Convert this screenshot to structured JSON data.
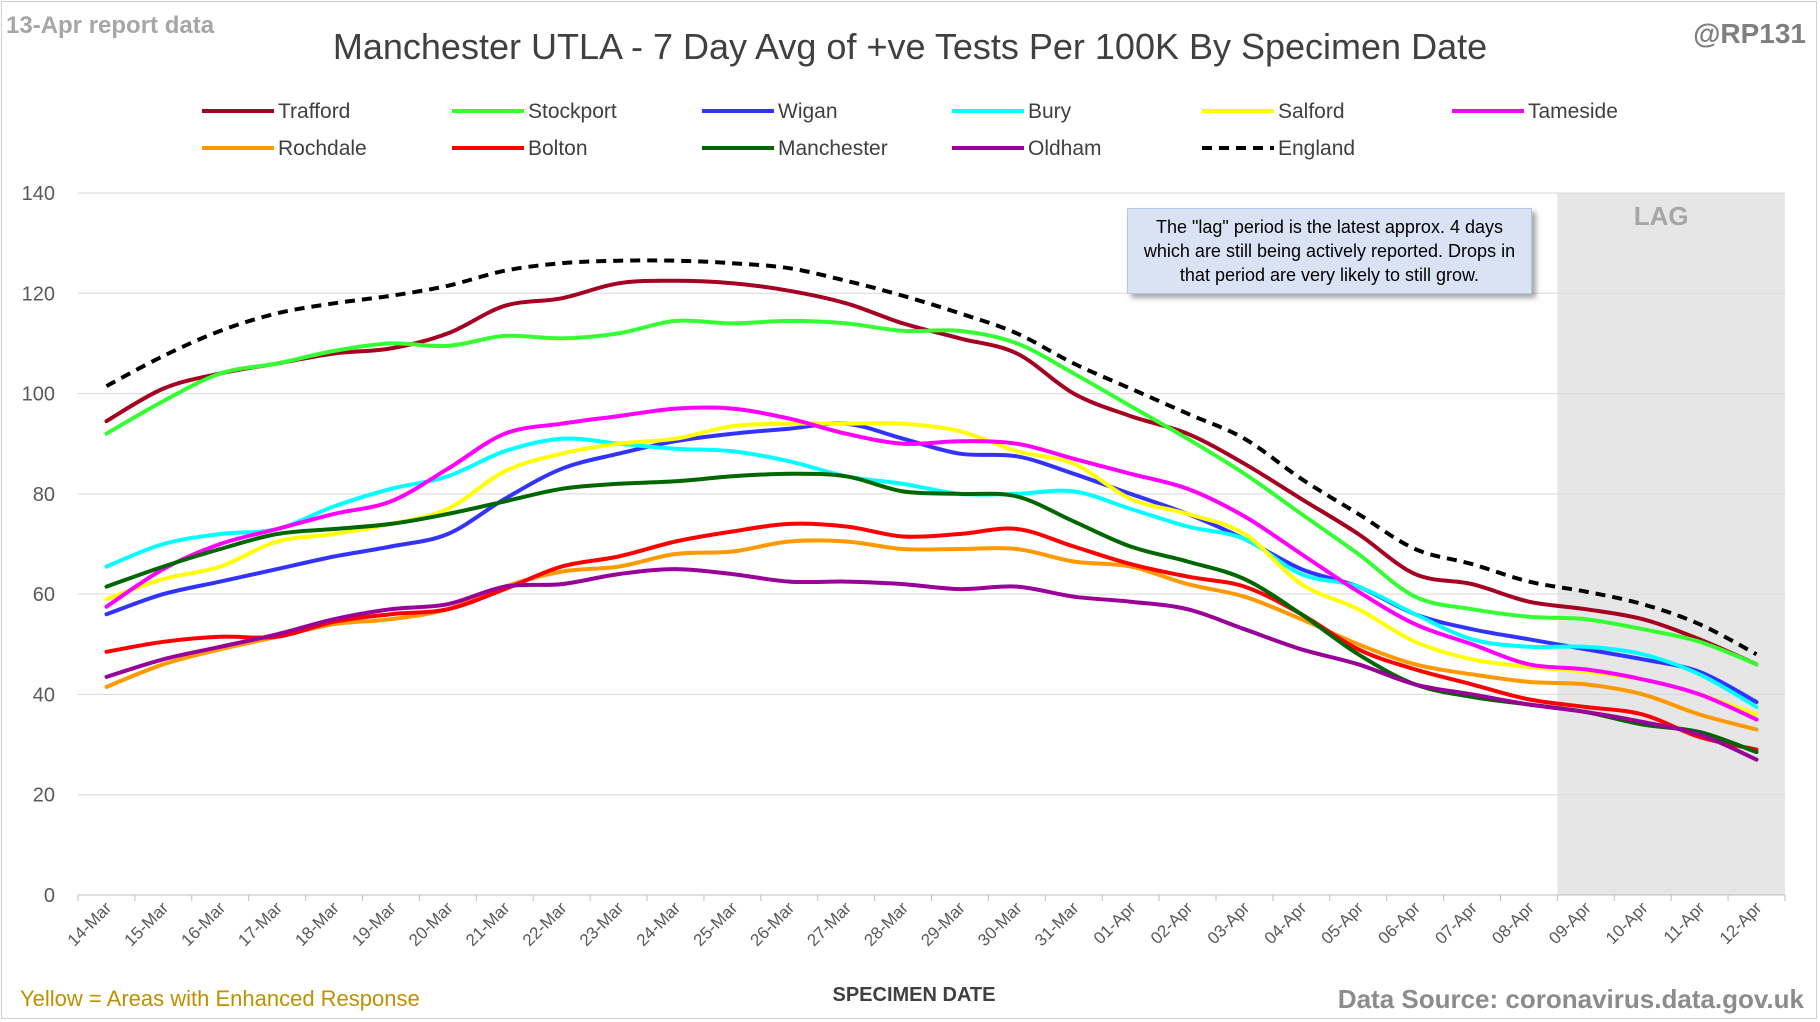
{
  "header": {
    "report_label": "13-Apr report data",
    "handle": "@RP131"
  },
  "footer": {
    "note": "Yellow = Areas with Enhanced Response",
    "source": "Data Source: coronavirus.data.gov.uk"
  },
  "annotation": {
    "lag_label": "LAG",
    "note": "The \"lag\" period is the latest approx. 4 days which are still being actively reported. Drops in that period are very likely to still grow."
  },
  "chart_data": {
    "type": "line",
    "title": "Manchester UTLA - 7 Day Avg of +ve Tests Per 100K By Specimen Date",
    "xlabel": "SPECIMEN DATE",
    "ylabel": "",
    "ylim": [
      0,
      140
    ],
    "yticks": [
      0,
      20,
      40,
      60,
      80,
      100,
      120,
      140
    ],
    "grid": true,
    "legend_position": "top",
    "lag_start": "09-Apr",
    "categories": [
      "14-Mar",
      "15-Mar",
      "16-Mar",
      "17-Mar",
      "18-Mar",
      "19-Mar",
      "20-Mar",
      "21-Mar",
      "22-Mar",
      "23-Mar",
      "24-Mar",
      "25-Mar",
      "26-Mar",
      "27-Mar",
      "28-Mar",
      "29-Mar",
      "30-Mar",
      "31-Mar",
      "01-Apr",
      "02-Apr",
      "03-Apr",
      "04-Apr",
      "05-Apr",
      "06-Apr",
      "07-Apr",
      "08-Apr",
      "09-Apr",
      "10-Apr",
      "11-Apr",
      "12-Apr"
    ],
    "series": [
      {
        "name": "Trafford",
        "color": "#a50021",
        "dash": false,
        "values": [
          94.5,
          101,
          104,
          106,
          108,
          109,
          112,
          117.5,
          119,
          122,
          122.5,
          122,
          120.5,
          118,
          114,
          111,
          108,
          100,
          95.5,
          92,
          86,
          79,
          72,
          64,
          62,
          58.5,
          57,
          55,
          51,
          46
        ]
      },
      {
        "name": "Stockport",
        "color": "#33ff33",
        "dash": false,
        "values": [
          92,
          98.5,
          104,
          106,
          108.5,
          110,
          109.5,
          111.5,
          111,
          112,
          114.5,
          114,
          114.5,
          114,
          112.5,
          112.5,
          110,
          104,
          97.5,
          91,
          84,
          76,
          68,
          59.5,
          57,
          55.5,
          55,
          53,
          50.5,
          46
        ]
      },
      {
        "name": "Wigan",
        "color": "#3333ff",
        "dash": false,
        "values": [
          56,
          60,
          62.5,
          65,
          67.5,
          69.5,
          72,
          79,
          85,
          88,
          90.5,
          92,
          93,
          94,
          91,
          88,
          87.5,
          84,
          80,
          76,
          71,
          65,
          61.5,
          56,
          53,
          51,
          49,
          47,
          44.5,
          38.5
        ]
      },
      {
        "name": "Bury",
        "color": "#00ffff",
        "dash": false,
        "values": [
          65.5,
          70,
          72,
          73,
          77.5,
          81,
          83.5,
          88.5,
          91,
          90,
          89,
          88.5,
          86.5,
          83.5,
          82,
          80,
          80,
          80.5,
          77,
          73.5,
          71,
          64,
          61.5,
          56,
          51,
          49.5,
          49.5,
          48,
          44,
          37.5
        ]
      },
      {
        "name": "Salford",
        "color": "#ffff00",
        "dash": false,
        "values": [
          59,
          63,
          65.5,
          70.5,
          72,
          74,
          77,
          84.5,
          88,
          90,
          91,
          93.5,
          94,
          94,
          94,
          92.5,
          88.5,
          86,
          79,
          76,
          72,
          62,
          57,
          50.5,
          47,
          45.5,
          44.5,
          43,
          40,
          36
        ]
      },
      {
        "name": "Tameside",
        "color": "#ff00ff",
        "dash": false,
        "values": [
          57.5,
          65,
          70,
          73,
          76,
          78.5,
          85,
          92,
          94,
          95.5,
          97,
          97,
          95,
          92,
          90,
          90.5,
          90,
          87,
          84,
          81,
          75.5,
          68,
          60.5,
          54,
          50,
          46,
          45,
          43,
          40,
          35
        ]
      },
      {
        "name": "Rochdale",
        "color": "#ff9900",
        "dash": false,
        "values": [
          41.5,
          46,
          49,
          51.5,
          54,
          55,
          57,
          61.5,
          64.5,
          65.5,
          68,
          68.5,
          70.5,
          70.5,
          69,
          69,
          69,
          66.5,
          65.5,
          62,
          59.5,
          55,
          50,
          46,
          44,
          42.5,
          42,
          40,
          36,
          33
        ]
      },
      {
        "name": "Bolton",
        "color": "#ff0000",
        "dash": false,
        "values": [
          48.5,
          50.5,
          51.5,
          51.5,
          54.5,
          56,
          57,
          61,
          65.5,
          67.5,
          70.5,
          72.5,
          74,
          73.5,
          71.5,
          72,
          73,
          69.5,
          66,
          63.5,
          61.5,
          56,
          49,
          45,
          42,
          39,
          37.5,
          36,
          31.5,
          29
        ]
      },
      {
        "name": "Manchester",
        "color": "#006600",
        "dash": false,
        "values": [
          61.5,
          65.5,
          69,
          72,
          73,
          74,
          76,
          78.5,
          81,
          82,
          82.5,
          83.5,
          84,
          83.5,
          80.5,
          80,
          79.5,
          74.5,
          69.5,
          66.5,
          63,
          56,
          48,
          42,
          39.5,
          38,
          36.5,
          34,
          32.5,
          28.5
        ]
      },
      {
        "name": "Oldham",
        "color": "#990099",
        "dash": false,
        "values": [
          43.5,
          47,
          49.5,
          52,
          55,
          57,
          58,
          61.5,
          62,
          64,
          65,
          64,
          62.5,
          62.5,
          62,
          61,
          61.5,
          59.5,
          58.5,
          57,
          53,
          49,
          46,
          42,
          40,
          38,
          36.5,
          34.5,
          32,
          27
        ]
      },
      {
        "name": "England",
        "color": "#000000",
        "dash": true,
        "values": [
          101.5,
          107.5,
          112.5,
          116,
          118,
          119.5,
          121.5,
          124.5,
          126,
          126.5,
          126.5,
          126,
          125,
          122.5,
          119.5,
          116,
          112,
          106,
          101,
          96,
          91,
          83,
          76,
          69,
          66,
          62.5,
          60.5,
          58,
          54,
          48
        ]
      }
    ]
  }
}
